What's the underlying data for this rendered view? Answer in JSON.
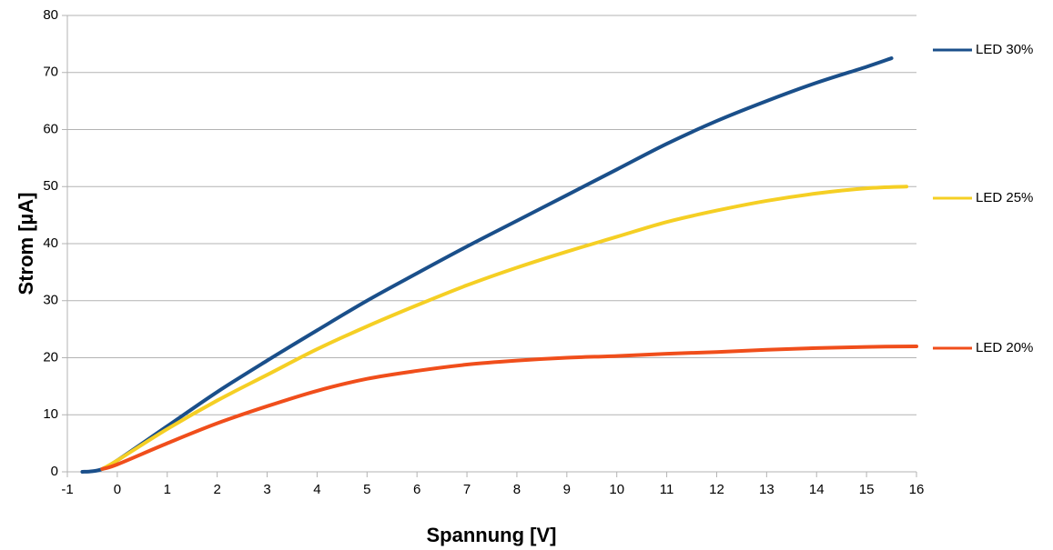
{
  "chart_data": {
    "type": "line",
    "xlabel": "Spannung [V]",
    "ylabel": "Strom [µA]",
    "xlim": [
      -1,
      16
    ],
    "xticks": [
      -1,
      0,
      1,
      2,
      3,
      4,
      5,
      6,
      7,
      8,
      9,
      10,
      11,
      12,
      13,
      14,
      15,
      16
    ],
    "ylim": [
      0,
      80
    ],
    "yticks": [
      0,
      10,
      20,
      30,
      40,
      50,
      60,
      70,
      80
    ],
    "grid": true,
    "legend": "right",
    "series": [
      {
        "name": "LED 30%",
        "color": "#1a4f8a",
        "x": [
          -0.7,
          -0.5,
          -0.3,
          0,
          1,
          2,
          3,
          4,
          5,
          6,
          7,
          8,
          9,
          10,
          11,
          12,
          13,
          14,
          15,
          15.5
        ],
        "values": [
          0,
          0.1,
          0.5,
          2,
          8,
          14,
          19.5,
          24.8,
          30,
          34.8,
          39.5,
          44,
          48.5,
          53,
          57.5,
          61.5,
          65,
          68.2,
          71,
          72.5
        ]
      },
      {
        "name": "LED 25%",
        "color": "#f5cf24",
        "x": [
          -0.3,
          0,
          1,
          2,
          3,
          4,
          5,
          6,
          7,
          8,
          9,
          10,
          11,
          12,
          13,
          14,
          15,
          15.8
        ],
        "values": [
          0.5,
          2,
          7.5,
          12.5,
          17,
          21.5,
          25.5,
          29.2,
          32.7,
          35.8,
          38.6,
          41.2,
          43.8,
          45.8,
          47.5,
          48.8,
          49.7,
          50
        ]
      },
      {
        "name": "LED 20%",
        "color": "#f04e1b",
        "x": [
          -0.3,
          0,
          1,
          2,
          3,
          4,
          5,
          6,
          7,
          8,
          9,
          10,
          11,
          12,
          13,
          14,
          15,
          16
        ],
        "values": [
          0.5,
          1.3,
          5,
          8.5,
          11.5,
          14.2,
          16.3,
          17.7,
          18.8,
          19.5,
          20,
          20.3,
          20.7,
          21,
          21.4,
          21.7,
          21.9,
          22
        ]
      }
    ]
  }
}
